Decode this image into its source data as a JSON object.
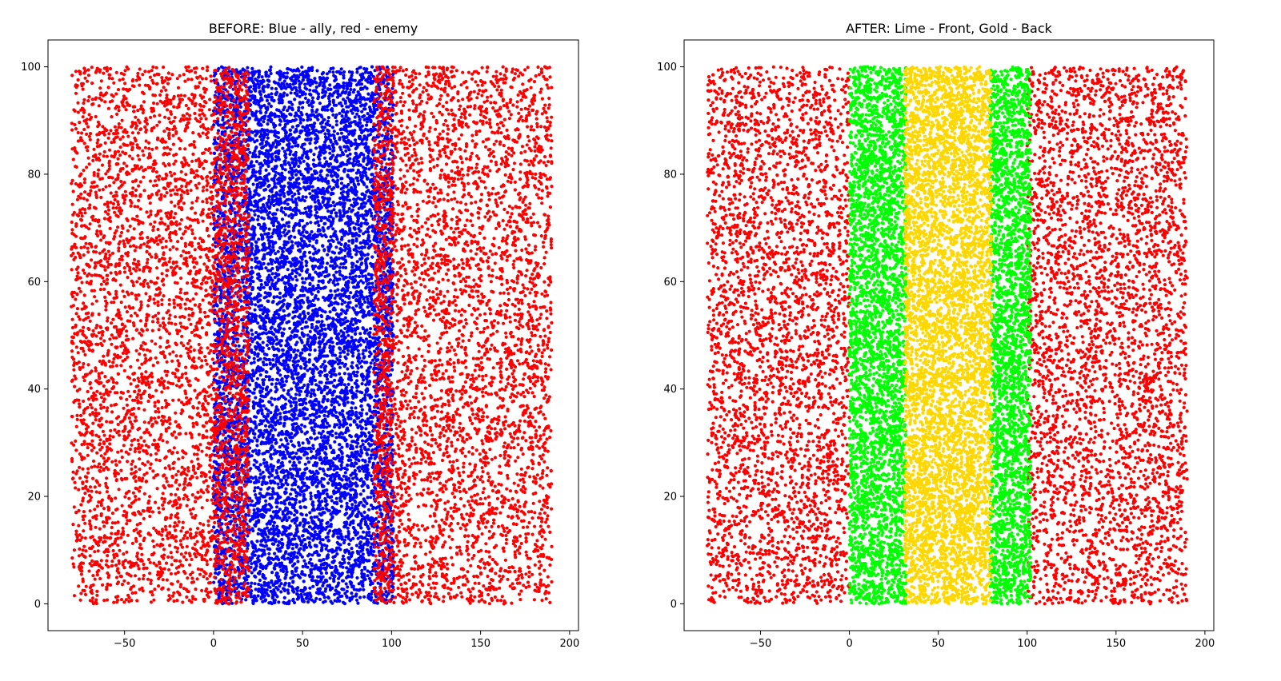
{
  "chart_data": [
    {
      "type": "scatter",
      "title": "BEFORE: Blue - ally, red - enemy",
      "xlabel": "",
      "ylabel": "",
      "xlim": [
        -93,
        205
      ],
      "ylim": [
        -5,
        105
      ],
      "xticks": [
        -50,
        0,
        50,
        100,
        150,
        200
      ],
      "yticks": [
        0,
        20,
        40,
        60,
        80,
        100
      ],
      "grid": false,
      "legend": "none",
      "series": [
        {
          "color": "#ff0000",
          "regions": [
            {
              "x": [
                -80,
                0
              ],
              "y": [
                0,
                100
              ],
              "count": 3200
            },
            {
              "x": [
                100,
                190
              ],
              "y": [
                0,
                100
              ],
              "count": 3600
            }
          ]
        },
        {
          "color": "#0000ff",
          "regions": [
            {
              "x": [
                0,
                101
              ],
              "y": [
                0,
                100
              ],
              "count": 9000
            }
          ]
        },
        {
          "color": "#ff0000",
          "regions": [
            {
              "x": [
                0,
                20
              ],
              "y": [
                0,
                100
              ],
              "count": 1400
            },
            {
              "x": [
                90,
                101
              ],
              "y": [
                0,
                100
              ],
              "count": 800
            }
          ]
        }
      ]
    },
    {
      "type": "scatter",
      "title": "AFTER: Lime - Front, Gold - Back",
      "xlabel": "",
      "ylabel": "",
      "xlim": [
        -93,
        205
      ],
      "ylim": [
        -5,
        105
      ],
      "xticks": [
        -50,
        0,
        50,
        100,
        150,
        200
      ],
      "yticks": [
        0,
        20,
        40,
        60,
        80,
        100
      ],
      "grid": false,
      "legend": "none",
      "series": [
        {
          "color": "#ff0000",
          "regions": [
            {
              "x": [
                -80,
                0
              ],
              "y": [
                0,
                100
              ],
              "count": 3200
            },
            {
              "x": [
                100,
                190
              ],
              "y": [
                0,
                100
              ],
              "count": 3600
            }
          ]
        },
        {
          "color": "#00ff00",
          "regions": [
            {
              "x": [
                0,
                32
              ],
              "y": [
                0,
                100
              ],
              "count": 3500
            },
            {
              "x": [
                79,
                102
              ],
              "y": [
                0,
                100
              ],
              "count": 2600
            }
          ]
        },
        {
          "color": "#ffd700",
          "regions": [
            {
              "x": [
                31,
                80
              ],
              "y": [
                0,
                100
              ],
              "count": 5200
            }
          ]
        }
      ]
    }
  ]
}
